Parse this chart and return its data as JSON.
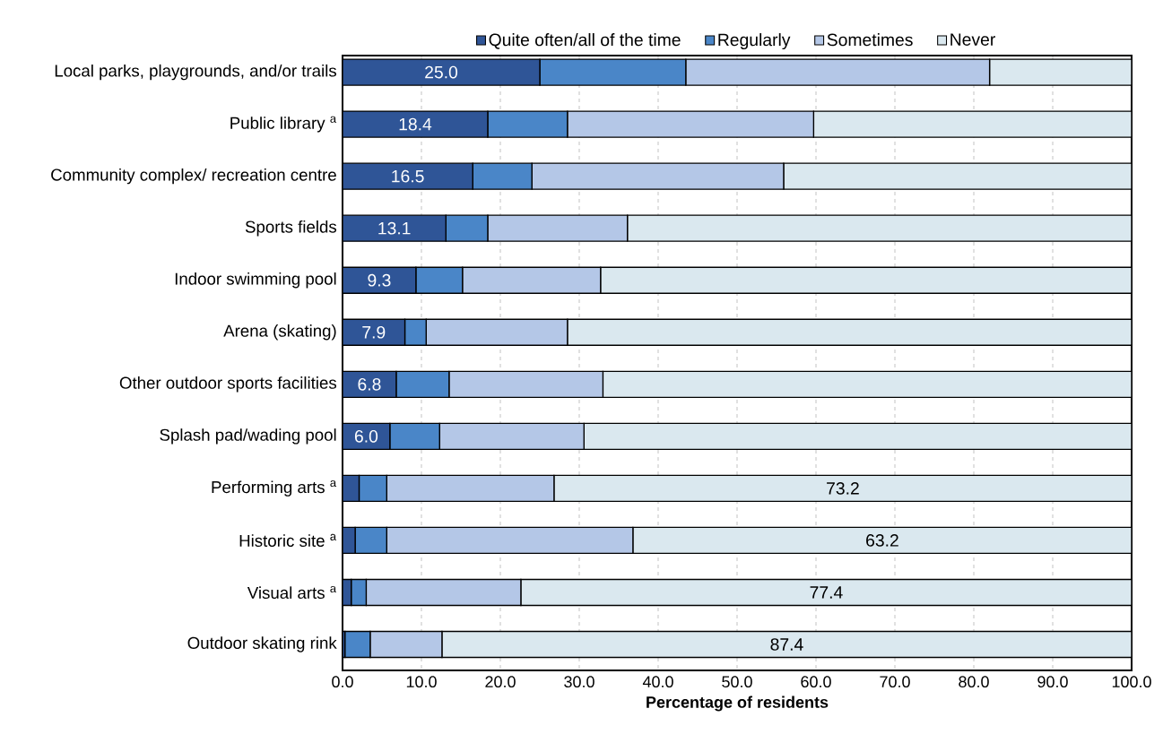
{
  "chart_data": {
    "type": "bar",
    "orientation": "horizontal",
    "stacked": true,
    "xlabel": "Percentage of residents",
    "categories": [
      "Local parks, playgrounds, and/or trails",
      "Public library $^{a}$",
      "Community complex/ recreation centre",
      "Sports fields",
      "Indoor swimming pool",
      "Arena (skating)",
      "Other outdoor sports facilities",
      "Splash pad/wading pool",
      "Performing arts $^{a}$",
      "Historic site $^{a}$",
      "Visual arts $^{a}$",
      "Outdoor skating rink"
    ],
    "series": [
      {
        "name": "Quite often/all of the time",
        "color": "#2f5597",
        "values": [
          25.0,
          18.4,
          16.5,
          13.1,
          9.3,
          7.9,
          6.8,
          6.0,
          2.1,
          1.6,
          1.1,
          0.3
        ],
        "value_labels": [
          "25.0",
          "18.4",
          "16.5",
          "13.1",
          "9.3",
          "7.9",
          "6.8",
          "6.0",
          null,
          null,
          null,
          null
        ]
      },
      {
        "name": "Regularly",
        "color": "#4a86c8",
        "values": [
          18.5,
          10.1,
          7.5,
          5.3,
          5.9,
          2.7,
          6.7,
          6.3,
          3.5,
          4.0,
          1.9,
          3.2
        ]
      },
      {
        "name": "Sometimes",
        "color": "#b4c7e7",
        "values": [
          38.5,
          31.2,
          31.9,
          17.7,
          17.5,
          17.9,
          19.5,
          18.3,
          21.2,
          31.2,
          19.6,
          9.1
        ]
      },
      {
        "name": "Never",
        "color": "#dae8ef",
        "values": [
          18.0,
          40.3,
          44.1,
          63.9,
          67.3,
          71.5,
          67.0,
          69.4,
          73.2,
          63.2,
          77.4,
          87.4
        ],
        "value_labels": [
          null,
          null,
          null,
          null,
          null,
          null,
          null,
          null,
          "73.2",
          "63.2",
          "77.4",
          "87.4"
        ]
      }
    ],
    "xlim": [
      0,
      100
    ],
    "xticks": [
      {
        "value": 0,
        "label": "0.0"
      },
      {
        "value": 10,
        "label": "10.0"
      },
      {
        "value": 20,
        "label": "20.0"
      },
      {
        "value": 30,
        "label": "30.0"
      },
      {
        "value": 40,
        "label": "40.0"
      },
      {
        "value": 50,
        "label": "50.0"
      },
      {
        "value": 60,
        "label": "60.0"
      },
      {
        "value": 70,
        "label": "70.0"
      },
      {
        "value": 80,
        "label": "80.0"
      },
      {
        "value": 90,
        "label": "90.0"
      },
      {
        "value": 100,
        "label": "100.0"
      }
    ],
    "grid": "x",
    "legend": "top"
  }
}
